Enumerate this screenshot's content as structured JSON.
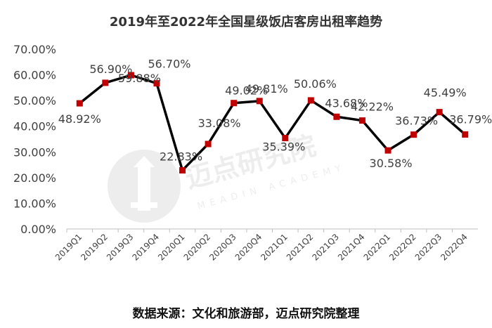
{
  "title": "2019年至2022年全国星级饭店客房出租率趋势",
  "source_note": "数据来源：文化和旅游部，迈点研究院整理",
  "watermark": {
    "cn": "迈点研究院",
    "en": "MEADIN ACADEMY"
  },
  "colors": {
    "line": "#000000",
    "marker": "#c00000",
    "axis": "#666666",
    "text": "#404040"
  },
  "chart_data": {
    "type": "line",
    "title": "2019年至2022年全国星级饭店客房出租率趋势",
    "xlabel": "",
    "ylabel": "",
    "ylim": [
      0,
      70
    ],
    "y_ticks": [
      "0.00%",
      "10.00%",
      "20.00%",
      "30.00%",
      "40.00%",
      "50.00%",
      "60.00%",
      "70.00%"
    ],
    "grid": false,
    "legend": "none",
    "categories": [
      "2019Q1",
      "2019Q2",
      "2019Q3",
      "2019Q4",
      "2020Q1",
      "2020Q2",
      "2020Q3",
      "2020Q4",
      "2021Q1",
      "2021Q2",
      "2021Q3",
      "2021Q4",
      "2022Q1",
      "2022Q2",
      "2022Q3",
      "2022Q4"
    ],
    "values": [
      48.92,
      56.9,
      59.88,
      56.7,
      22.83,
      33.08,
      49.02,
      49.81,
      35.39,
      50.06,
      43.68,
      42.22,
      30.58,
      36.73,
      45.49,
      36.79
    ],
    "data_labels": [
      "48.92%",
      "56.90%",
      "59.88%",
      "56.70%",
      "22.83%",
      "33.08%",
      "49.02%",
      "49.81%",
      "35.39%",
      "50.06%",
      "43.68%",
      "42.22%",
      "30.58%",
      "36.73%",
      "45.49%",
      "36.79%"
    ]
  }
}
